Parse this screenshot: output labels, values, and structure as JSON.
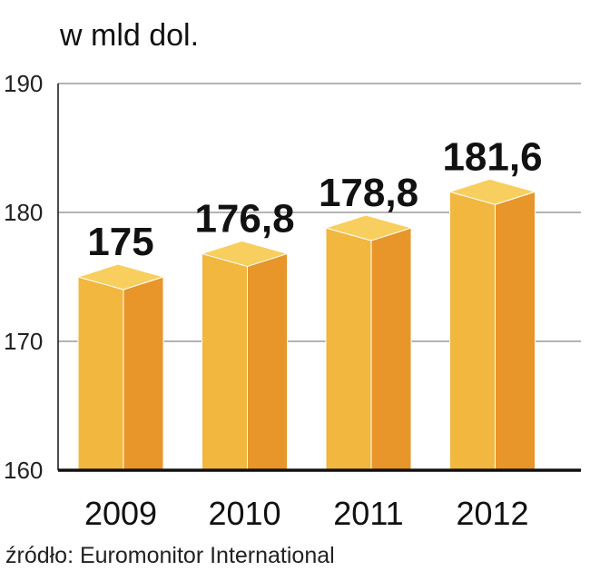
{
  "unit_label": "w mld dol.",
  "source": "źródło: Euromonitor International",
  "colors": {
    "bar_front": "#F2B73F",
    "bar_side": "#E8952A",
    "bar_top": "#F8CF5E",
    "grid": "#9a9a9a",
    "axis": "#111111"
  },
  "chart_data": {
    "type": "bar",
    "title": "",
    "ylabel": "w mld dol.",
    "xlabel": "",
    "categories": [
      "2009",
      "2010",
      "2011",
      "2012"
    ],
    "values": [
      175,
      176.8,
      178.8,
      181.6
    ],
    "value_labels": [
      "175",
      "176,8",
      "178,8",
      "181,6"
    ],
    "ylim": [
      160,
      190
    ],
    "yticks": [
      160,
      170,
      180,
      190
    ],
    "grid": true,
    "legend": "none"
  }
}
